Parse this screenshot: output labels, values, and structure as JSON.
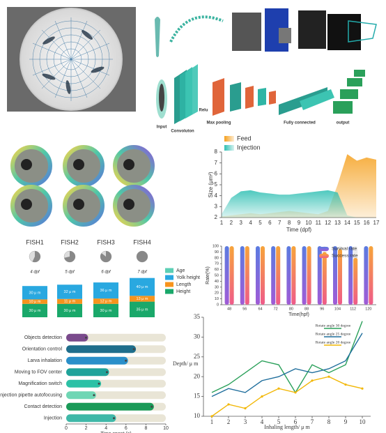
{
  "diagram": {
    "labels": [
      "Input",
      "Convoluton",
      "Relu",
      "Max pooling",
      "Fully connected",
      "output"
    ]
  },
  "chart_data": [
    {
      "type": "area",
      "categories": [
        1,
        2,
        3,
        4,
        5,
        6,
        7,
        8,
        9,
        10,
        11,
        12,
        13,
        14,
        15,
        16,
        17
      ],
      "series": [
        {
          "name": "Feed",
          "color": "#f5a01e",
          "values": [
            2.1,
            2.2,
            2.3,
            2.4,
            2.3,
            2.4,
            2.5,
            2.6,
            2.5,
            2.4,
            2.3,
            2.6,
            5.0,
            7.8,
            7.2,
            7.5,
            7.3
          ]
        },
        {
          "name": "Injection",
          "color": "#2fbfb3",
          "values": [
            2.3,
            3.8,
            4.4,
            4.5,
            4.3,
            4.2,
            4.1,
            4.1,
            4.2,
            4.3,
            4.4,
            4.5,
            4.3,
            2.2,
            2.0,
            2.0,
            2.0
          ]
        }
      ],
      "ylim": [
        2,
        8
      ],
      "yticks": [
        2,
        3,
        4,
        5,
        6,
        7,
        8
      ],
      "ylabel": "Size (μm²)",
      "xlabel": "Time (dpf)",
      "legend": "upper left"
    },
    {
      "type": "stacked_bar",
      "categories": [
        "FISH1",
        "FISH2",
        "FISH3",
        "FISH4"
      ],
      "ages": {
        "name": "Age",
        "color": "#5ccfb5",
        "values": [
          4,
          5,
          6,
          7
        ],
        "value_labels": [
          "4 dpf",
          "5 dpf",
          "6 dpf",
          "7 dpf"
        ]
      },
      "series": [
        {
          "name": "Yolk height",
          "color": "#29a8e0",
          "values": [
            30,
            32,
            36,
            40
          ],
          "value_labels": [
            "30 μ m",
            "32 μ m",
            "36 μ m",
            "40 μ m"
          ]
        },
        {
          "name": "Length",
          "color": "#f7941d",
          "values": [
            10,
            11,
            12,
            13
          ],
          "value_labels": [
            "10 μ m",
            "11 μ m",
            "12 μ m",
            "13 μ m"
          ]
        },
        {
          "name": "Height",
          "color": "#1aa86a",
          "values": [
            30,
            30,
            30,
            35
          ],
          "value_labels": [
            "30 μ m",
            "30 μ m",
            "30 μ m",
            "35 μ m"
          ]
        }
      ],
      "legend": "right"
    },
    {
      "type": "grouped_bar",
      "categories": [
        48,
        56,
        64,
        72,
        80,
        88,
        96,
        104,
        112,
        120
      ],
      "series": [
        {
          "name": "Survival rate",
          "color": "#5b7be0",
          "values": [
            100,
            100,
            100,
            100,
            100,
            100,
            100,
            100,
            100,
            100
          ]
        },
        {
          "name": "Success rate",
          "color": "#f7a43a",
          "values": [
            100,
            100,
            100,
            100,
            100,
            100,
            90,
            95,
            80,
            100
          ]
        }
      ],
      "ylim": [
        0,
        100
      ],
      "yticks": [
        0,
        10,
        20,
        30,
        40,
        50,
        60,
        70,
        80,
        90,
        100
      ],
      "ylabel": "Rate(%)",
      "xlabel": "Time(hpf)",
      "legend": "upper right"
    },
    {
      "type": "hbar",
      "categories": [
        "Objects detection",
        "Orientation control",
        "Larva inhalation",
        "Moving to FOV center",
        "Magnification switch",
        "Injection pipette autofocusing",
        "Contact detection",
        "Injection"
      ],
      "values": [
        2.2,
        7.0,
        6.2,
        4.3,
        3.5,
        3.0,
        8.8,
        5.0
      ],
      "colors": [
        "#7a4a8c",
        "#1f6e8c",
        "#2a8fc9",
        "#1fa39a",
        "#2cc1a6",
        "#6fd6b4",
        "#1a9a58",
        "#3fb8a8"
      ],
      "xlim": [
        0,
        10
      ],
      "xticks": [
        0,
        2,
        4,
        6,
        8,
        10
      ],
      "xlabel": "Time spent (s)"
    },
    {
      "type": "line",
      "x": [
        1,
        2,
        3,
        4,
        5,
        6,
        7,
        8,
        9,
        10
      ],
      "series": [
        {
          "name": "Rotate angle 30 degree",
          "color": "#2aa05a",
          "values": [
            16,
            18,
            21,
            24,
            23,
            16,
            23,
            21,
            23,
            34
          ]
        },
        {
          "name": "Rotate angle 25 degree",
          "color": "#1f6e9c",
          "values": [
            15,
            17,
            16,
            19,
            20,
            22,
            21,
            22,
            24,
            31
          ]
        },
        {
          "name": "Rotate angle 20 degree",
          "color": "#f2b705",
          "values": [
            10,
            13,
            12,
            15,
            17,
            16,
            19,
            20,
            18,
            17
          ],
          "marker": "circle"
        }
      ],
      "xlim": [
        0.5,
        10.5
      ],
      "xticks": [
        1,
        2,
        3,
        4,
        5,
        6,
        7,
        8,
        9,
        10
      ],
      "ylim": [
        10,
        35
      ],
      "yticks": [
        10,
        15,
        20,
        25,
        30,
        35
      ],
      "xlabel": "Inhaling length/ μ m",
      "ylabel": "Depth/ μ m",
      "legend": "upper right"
    }
  ]
}
